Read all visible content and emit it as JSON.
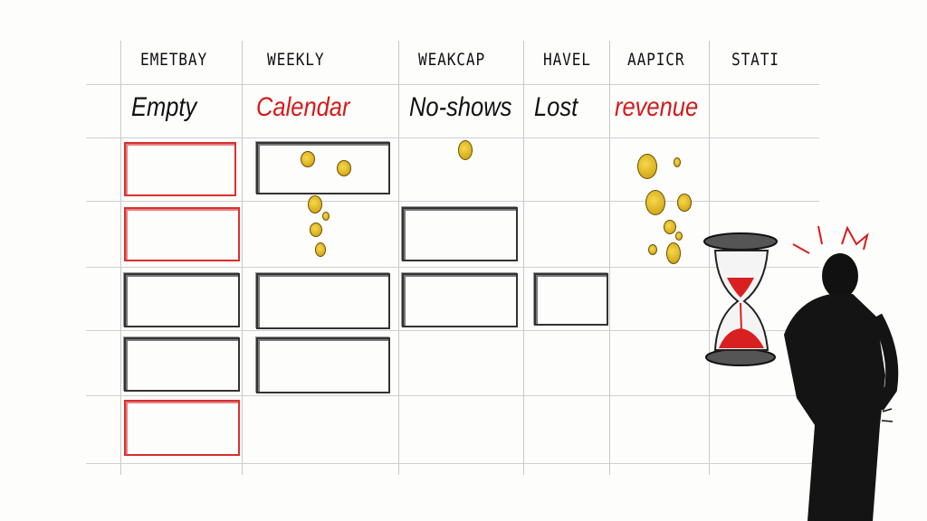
{
  "headers": [
    "EMETBAY",
    "WEEKLY",
    "WEAKCAP",
    "HAVEL",
    "AAPICR",
    "STATI"
  ],
  "subheaders": [
    {
      "text": "Empty",
      "color": "#111111"
    },
    {
      "text": "Calendar",
      "color": "#d41a1a"
    },
    {
      "text": "No-shows",
      "color": "#111111"
    },
    {
      "text": "Lost",
      "color": "#111111"
    },
    {
      "text": "revenue",
      "color": "#d41a1a"
    }
  ],
  "colors": {
    "accent_red": "#d41a1a",
    "coin_gold": "#e0b520",
    "ink": "#111111"
  },
  "icons": [
    "coin-icon",
    "hourglass-icon",
    "stressed-person-figure"
  ]
}
